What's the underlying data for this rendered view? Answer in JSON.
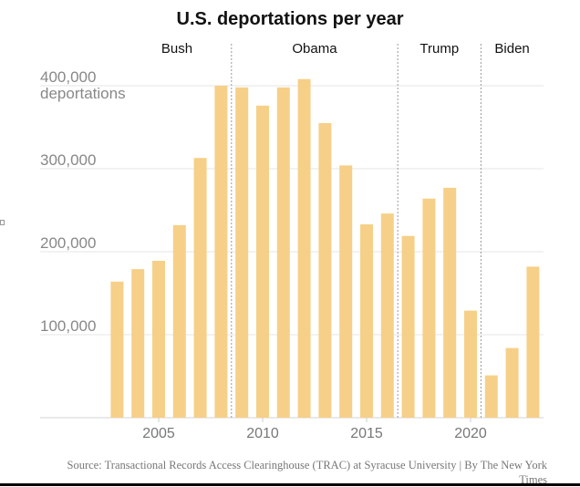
{
  "chart_data": {
    "type": "bar",
    "title": "U.S. deportations per year",
    "xlabel": "",
    "ylabel": "deportations",
    "ylim": [
      0,
      400000
    ],
    "y_ticks": [
      {
        "value": 400000,
        "label": "400,000",
        "sublabel": "deportations"
      },
      {
        "value": 300000,
        "label": "300,000"
      },
      {
        "value": 200000,
        "label": "200,000"
      },
      {
        "value": 100000,
        "label": "100,000"
      }
    ],
    "x_ticks": [
      {
        "value": 2005,
        "label": "2005"
      },
      {
        "value": 2010,
        "label": "2010"
      },
      {
        "value": 2015,
        "label": "2015"
      },
      {
        "value": 2020,
        "label": "2020"
      }
    ],
    "categories": [
      2003,
      2004,
      2005,
      2006,
      2007,
      2008,
      2009,
      2010,
      2011,
      2012,
      2013,
      2014,
      2015,
      2016,
      2017,
      2018,
      2019,
      2020,
      2021,
      2022,
      2023
    ],
    "values": [
      164000,
      179000,
      189000,
      232000,
      313000,
      400000,
      398000,
      376000,
      398000,
      408000,
      355000,
      304000,
      233000,
      246000,
      219000,
      264000,
      277000,
      129000,
      51000,
      84000,
      182000
    ],
    "bar_color": "#f6d088",
    "eras": [
      {
        "label": "Bush",
        "start": 2002.5,
        "end": 2008.5
      },
      {
        "label": "Obama",
        "start": 2008.5,
        "end": 2016.5
      },
      {
        "label": "Trump",
        "start": 2016.5,
        "end": 2020.5
      },
      {
        "label": "Biden",
        "start": 2020.5,
        "end": 2023.5
      }
    ],
    "grid": true
  },
  "source": "Source: Transactional Records Access Clearinghouse (TRAC) at Syracuse University | By The New York Times"
}
